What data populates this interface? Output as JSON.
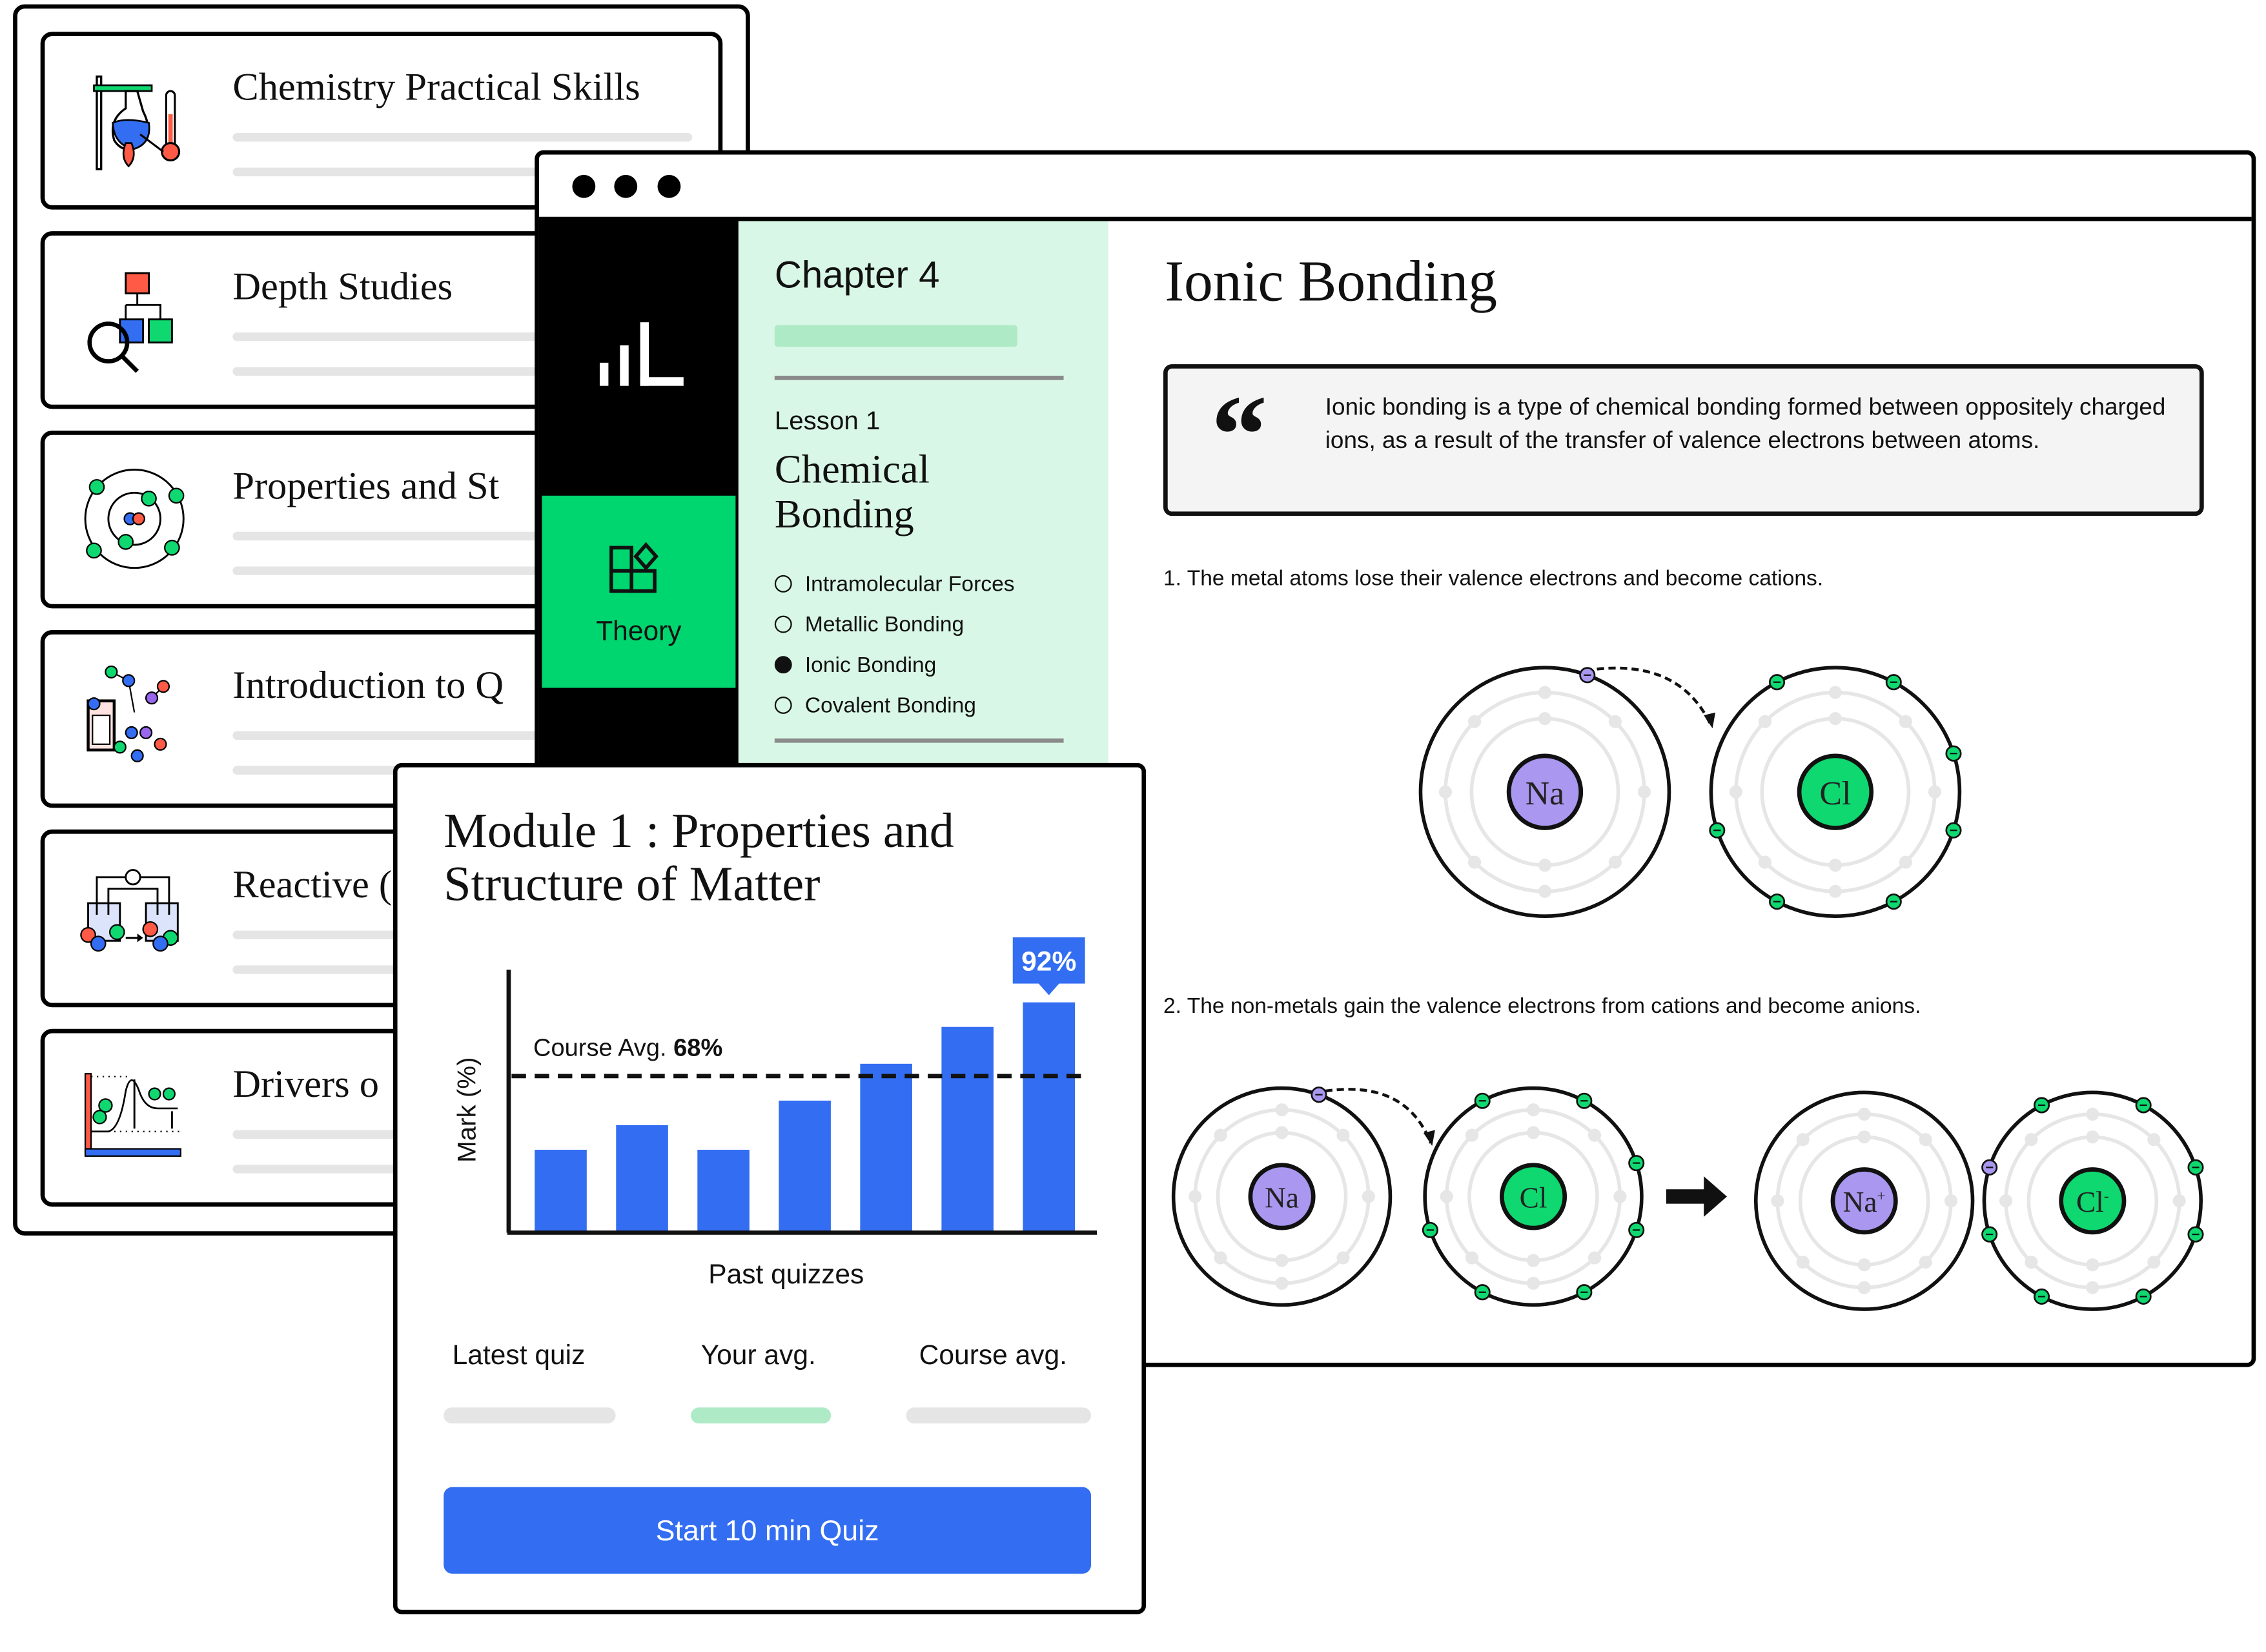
{
  "module_list": {
    "cards": [
      {
        "title": "Chemistry Practical Skills",
        "icon": "lab-flask-icon"
      },
      {
        "title": "Depth Studies",
        "icon": "magnifier-flowchart-icon"
      },
      {
        "title": "Properties and St",
        "icon": "atom-icon"
      },
      {
        "title": "Introduction to Q",
        "icon": "calculator-molecule-icon"
      },
      {
        "title": "Reactive (",
        "icon": "electrochemical-cell-icon"
      },
      {
        "title": "Drivers o",
        "icon": "energy-profile-icon"
      }
    ]
  },
  "browser": {
    "sidebar": {
      "logo": "bar-logo-icon",
      "active_item": {
        "label": "Theory",
        "icon": "shapes-icon"
      }
    },
    "lesson_panel": {
      "chapter": "Chapter 4",
      "lesson": "Lesson 1",
      "lesson_title_line1": "Chemical",
      "lesson_title_line2": "Bonding",
      "topics": [
        {
          "label": "Intramolecular Forces",
          "selected": false
        },
        {
          "label": "Metallic Bonding",
          "selected": false
        },
        {
          "label": "Ionic Bonding",
          "selected": true
        },
        {
          "label": "Covalent Bonding",
          "selected": false
        }
      ]
    },
    "content": {
      "title": "Ionic Bonding",
      "quote": "Ionic bonding is a type of chemical bonding formed between oppositely charged ions, as a result of the transfer of valence electrons between atoms.",
      "step1": "1. The metal atoms lose their valence electrons and become cations.",
      "step2": "2. The non-metals gain the valence electrons from cations and become anions.",
      "diagram1": [
        {
          "symbol": "Na",
          "charge": "",
          "outer_electrons": 1
        },
        {
          "symbol": "Cl",
          "charge": "",
          "outer_electrons": 7
        }
      ],
      "diagram2_before": [
        {
          "symbol": "Na",
          "charge": "",
          "outer_electrons": 1
        },
        {
          "symbol": "Cl",
          "charge": "",
          "outer_electrons": 7
        }
      ],
      "diagram2_after": [
        {
          "symbol": "Na",
          "charge": "+",
          "outer_electrons": 0
        },
        {
          "symbol": "Cl",
          "charge": "-",
          "outer_electrons": 8
        }
      ],
      "colors": {
        "sodium": "#a997f0",
        "chlorine": "#0ed86f"
      }
    }
  },
  "module_card": {
    "title_line1": "Module 1 : Properties and",
    "title_line2": "Structure of Matter",
    "stats": {
      "latest_label": "Latest quiz",
      "your_avg_label": "Your avg.",
      "course_avg_label": "Course avg."
    },
    "start_button": "Start 10 min Quiz"
  },
  "chart_data": {
    "type": "bar",
    "categories": [
      "",
      "",
      "",
      "",
      "",
      "",
      ""
    ],
    "values": [
      44,
      52,
      44,
      60,
      72,
      84,
      92
    ],
    "xlabel": "Past quizzes",
    "ylabel": "Mark (%)",
    "highlight_label": "92%",
    "reference_line": {
      "label": "Course Avg.",
      "value_label": "68%",
      "value": 68
    },
    "bar_color": "#336ef2",
    "grid": false
  },
  "colors": {
    "accent_blue": "#336ef2",
    "accent_green": "#00d66f",
    "panel_green": "#d9f7e6",
    "bar_green": "#aeeac6"
  }
}
